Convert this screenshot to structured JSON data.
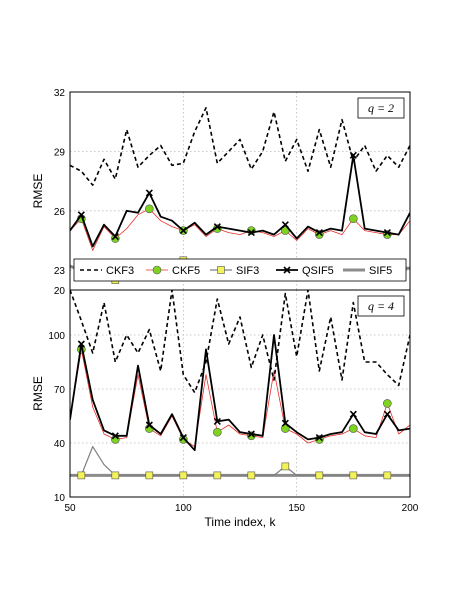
{
  "chart_data": [
    {
      "type": "line",
      "panel_label": "q = 2",
      "ylabel": "RMSE",
      "xlim": [
        50,
        200
      ],
      "ylim": [
        22,
        32
      ],
      "yticks": [
        23,
        26,
        29,
        32
      ],
      "grid": true,
      "legend": {
        "placement": "bottom",
        "entries": [
          "CKF3",
          "CKF5",
          "SIF3",
          "QSIF5",
          "SIF5"
        ]
      },
      "series": [
        {
          "name": "CKF3",
          "style": "dashed-black",
          "x": [
            50,
            55,
            60,
            65,
            70,
            75,
            80,
            85,
            90,
            95,
            100,
            105,
            110,
            115,
            120,
            125,
            130,
            135,
            140,
            145,
            150,
            155,
            160,
            165,
            170,
            175,
            180,
            185,
            190,
            195,
            200
          ],
          "values": [
            28.3,
            28.0,
            27.3,
            28.6,
            27.6,
            30.1,
            28.2,
            28.8,
            29.3,
            28.3,
            28.4,
            30.0,
            31.2,
            28.4,
            29.0,
            29.6,
            28.1,
            29.0,
            31.0,
            28.5,
            29.6,
            28.0,
            30.1,
            28.2,
            30.6,
            28.5,
            29.3,
            28.0,
            28.8,
            28.2,
            29.3
          ]
        },
        {
          "name": "CKF5",
          "style": "thin-red-green-circle",
          "x": [
            50,
            55,
            60,
            65,
            70,
            75,
            80,
            85,
            90,
            95,
            100,
            105,
            110,
            115,
            120,
            125,
            130,
            135,
            140,
            145,
            150,
            155,
            160,
            165,
            170,
            175,
            180,
            185,
            190,
            195,
            200
          ],
          "values": [
            25.0,
            25.6,
            24.0,
            25.2,
            24.6,
            25.1,
            25.8,
            26.1,
            25.5,
            25.2,
            25.0,
            25.3,
            24.7,
            25.1,
            24.9,
            24.8,
            25.0,
            24.9,
            24.7,
            25.0,
            24.5,
            25.1,
            24.8,
            25.0,
            24.8,
            25.6,
            25.0,
            24.9,
            24.8,
            24.8,
            25.5
          ]
        },
        {
          "name": "SIF3",
          "style": "gray-yellow-square",
          "x": [
            50,
            55,
            60,
            65,
            70,
            75,
            80,
            85,
            90,
            95,
            100,
            105,
            110,
            115,
            120,
            125,
            130,
            135,
            140,
            145,
            150,
            155,
            160,
            165,
            170,
            175,
            180,
            185,
            190,
            195,
            200
          ],
          "values": [
            23.2,
            23.0,
            23.1,
            22.8,
            22.5,
            22.7,
            22.6,
            22.8,
            22.6,
            22.9,
            23.5,
            23.0,
            22.7,
            22.8,
            22.9,
            22.6,
            22.8,
            22.7,
            22.9,
            22.7,
            22.5,
            22.7,
            22.9,
            22.8,
            23.0,
            22.9,
            22.8,
            23.0,
            22.9,
            23.1,
            23.1
          ]
        },
        {
          "name": "QSIF5",
          "style": "thick-black-cross",
          "x": [
            50,
            55,
            60,
            65,
            70,
            75,
            80,
            85,
            90,
            95,
            100,
            105,
            110,
            115,
            120,
            125,
            130,
            135,
            140,
            145,
            150,
            155,
            160,
            165,
            170,
            175,
            180,
            185,
            190,
            195,
            200
          ],
          "values": [
            25.0,
            25.8,
            24.2,
            25.3,
            24.7,
            26.0,
            25.9,
            26.9,
            25.7,
            25.5,
            25.0,
            25.4,
            24.8,
            25.2,
            25.1,
            25.0,
            24.9,
            25.0,
            24.8,
            25.3,
            24.6,
            25.2,
            24.9,
            25.1,
            25.0,
            28.8,
            25.1,
            25.0,
            24.9,
            24.8,
            25.9
          ]
        },
        {
          "name": "SIF5",
          "style": "thick-gray",
          "x": [
            50,
            55,
            60,
            65,
            70,
            75,
            80,
            85,
            90,
            95,
            100,
            105,
            110,
            115,
            120,
            125,
            130,
            135,
            140,
            145,
            150,
            155,
            160,
            165,
            170,
            175,
            180,
            185,
            190,
            195,
            200
          ],
          "values": [
            23.2,
            23.0,
            23.1,
            22.8,
            22.5,
            22.7,
            22.6,
            22.8,
            22.6,
            22.9,
            23.5,
            23.0,
            22.7,
            22.8,
            22.9,
            22.6,
            22.8,
            22.7,
            22.9,
            22.7,
            22.5,
            22.7,
            22.9,
            22.8,
            23.0,
            22.9,
            22.8,
            23.0,
            22.9,
            23.1,
            23.1
          ]
        }
      ]
    },
    {
      "type": "line",
      "panel_label": "q = 4",
      "ylabel": "RMSE",
      "xlabel": "Time index, k",
      "xlim": [
        50,
        200
      ],
      "ylim": [
        10,
        125
      ],
      "yticks": [
        10,
        40,
        70,
        100
      ],
      "top_tick_label": "20",
      "xticks": [
        50,
        100,
        150,
        200
      ],
      "grid": true,
      "series": [
        {
          "name": "CKF3",
          "style": "dashed-black",
          "x": [
            50,
            55,
            60,
            65,
            70,
            75,
            80,
            85,
            90,
            95,
            100,
            105,
            110,
            115,
            120,
            125,
            130,
            135,
            140,
            145,
            150,
            155,
            160,
            165,
            170,
            175,
            180,
            185,
            190,
            195,
            200
          ],
          "values": [
            125,
            108,
            90,
            118,
            85,
            100,
            90,
            103,
            80,
            125,
            78,
            68,
            85,
            120,
            95,
            110,
            82,
            100,
            75,
            123,
            88,
            125,
            80,
            110,
            75,
            118,
            85,
            85,
            78,
            72,
            100
          ]
        },
        {
          "name": "CKF5",
          "style": "thin-red-green-circle",
          "x": [
            50,
            55,
            60,
            65,
            70,
            75,
            80,
            85,
            90,
            95,
            100,
            105,
            110,
            115,
            120,
            125,
            130,
            135,
            140,
            145,
            150,
            155,
            160,
            165,
            170,
            175,
            180,
            185,
            190,
            195,
            200
          ],
          "values": [
            53,
            92,
            60,
            45,
            42,
            43,
            78,
            48,
            44,
            55,
            42,
            38,
            78,
            46,
            50,
            45,
            44,
            43,
            80,
            48,
            45,
            40,
            42,
            44,
            45,
            48,
            44,
            43,
            62,
            45,
            50
          ]
        },
        {
          "name": "SIF3",
          "style": "gray-yellow-square",
          "x": [
            50,
            55,
            60,
            65,
            70,
            75,
            80,
            85,
            90,
            95,
            100,
            105,
            110,
            115,
            120,
            125,
            130,
            135,
            140,
            145,
            150,
            155,
            160,
            165,
            170,
            175,
            180,
            185,
            190,
            195,
            200
          ],
          "values": [
            22,
            22,
            38,
            28,
            22,
            22,
            22,
            22,
            22,
            22,
            22,
            22,
            22,
            22,
            22,
            22,
            22,
            22,
            22,
            27,
            22,
            22,
            22,
            22,
            22,
            22,
            22,
            22,
            22,
            22,
            22
          ]
        },
        {
          "name": "QSIF5",
          "style": "thick-black-cross",
          "x": [
            50,
            55,
            60,
            65,
            70,
            75,
            80,
            85,
            90,
            95,
            100,
            105,
            110,
            115,
            120,
            125,
            130,
            135,
            140,
            145,
            150,
            155,
            160,
            165,
            170,
            175,
            180,
            185,
            190,
            195,
            200
          ],
          "values": [
            53,
            95,
            64,
            47,
            44,
            44,
            83,
            50,
            45,
            56,
            43,
            36,
            92,
            52,
            53,
            46,
            45,
            44,
            100,
            51,
            46,
            42,
            43,
            45,
            46,
            56,
            46,
            45,
            56,
            47,
            48
          ]
        },
        {
          "name": "SIF5",
          "style": "thick-gray",
          "x": [
            50,
            55,
            60,
            65,
            70,
            75,
            80,
            85,
            90,
            95,
            100,
            105,
            110,
            115,
            120,
            125,
            130,
            135,
            140,
            145,
            150,
            155,
            160,
            165,
            170,
            175,
            180,
            185,
            190,
            195,
            200
          ],
          "values": [
            22,
            22,
            22,
            22,
            22,
            22,
            22,
            22,
            22,
            22,
            22,
            22,
            22,
            22,
            22,
            22,
            22,
            22,
            22,
            22,
            22,
            22,
            22,
            22,
            22,
            22,
            22,
            22,
            22,
            22,
            22
          ]
        }
      ]
    }
  ],
  "colors": {
    "CKF3": "#000000",
    "CKF5_line": "#e8302a",
    "CKF5_marker": "#7ed321",
    "SIF3_line": "#808080",
    "SIF3_marker": "#f2f25a",
    "QSIF5": "#000000",
    "SIF5": "#8c8c8c",
    "grid": "#b8b8b8"
  }
}
